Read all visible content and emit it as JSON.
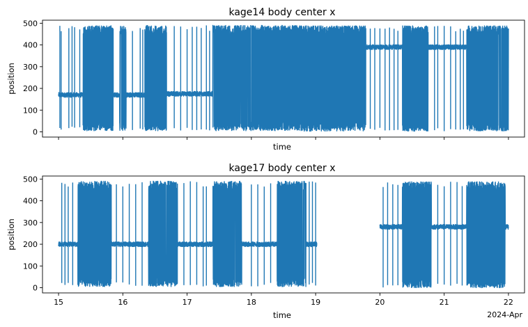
{
  "chart_data": [
    {
      "type": "line",
      "title": "kage14 body center x",
      "xlabel": "time",
      "ylabel": "position",
      "xlim": [
        14.75,
        22.25
      ],
      "ylim": [
        -24,
        514
      ],
      "xticks": [
        15,
        16,
        17,
        18,
        19,
        20,
        21,
        22
      ],
      "yticks": [
        0,
        100,
        200,
        300,
        400,
        500
      ],
      "ytick_labels": [
        "0",
        "100",
        "200",
        "300",
        "400",
        "500"
      ],
      "show_xtick_labels": false,
      "color": "#1f77b4",
      "segments": [
        {
          "x0": 15.0,
          "x1": 16.34,
          "base": 170,
          "lo": 5,
          "hi": 488,
          "dense": [
            [
              15.38,
              15.85
            ],
            [
              15.95,
              16.05
            ]
          ],
          "spikes": [
            15.02,
            15.04,
            15.16,
            15.21,
            15.25,
            15.33,
            16.15,
            16.27,
            16.31
          ]
        },
        {
          "x0": 16.34,
          "x1": 18.82,
          "base": 175,
          "lo": 5,
          "hi": 490,
          "dense": [
            [
              16.34,
              16.68
            ],
            [
              17.4,
              18.82
            ]
          ],
          "spikes": [
            16.8,
            16.9,
            17.0,
            17.08,
            17.15,
            17.22,
            17.3,
            17.35
          ]
        },
        {
          "x0": 18.82,
          "x1": 22.0,
          "base": 390,
          "lo": 3,
          "hi": 488,
          "dense": [
            [
              18.82,
              19.78
            ],
            [
              20.35,
              20.75
            ],
            [
              21.35,
              22.0
            ]
          ],
          "spikes": [
            19.85,
            19.92,
            20.0,
            20.08,
            20.15,
            20.22,
            20.28,
            20.85,
            20.9,
            21.0,
            21.1,
            21.18,
            21.25,
            21.3
          ]
        }
      ]
    },
    {
      "type": "line",
      "title": "kage17 body center x",
      "xlabel": "time",
      "ylabel": "position",
      "xlim": [
        14.75,
        22.25
      ],
      "ylim": [
        -24,
        514
      ],
      "xticks": [
        15,
        16,
        17,
        18,
        19,
        20,
        21,
        22
      ],
      "xtick_labels": [
        "15",
        "16",
        "17",
        "18",
        "19",
        "20",
        "21",
        "22"
      ],
      "x_offset_label": "2024-Apr",
      "yticks": [
        0,
        100,
        200,
        300,
        400,
        500
      ],
      "ytick_labels": [
        "0",
        "100",
        "200",
        "300",
        "400",
        "500"
      ],
      "color": "#1f77b4",
      "segments": [
        {
          "x0": 15.0,
          "x1": 19.02,
          "base": 200,
          "lo": 5,
          "hi": 490,
          "dense": [
            [
              15.3,
              15.82
            ],
            [
              16.4,
              16.85
            ],
            [
              17.4,
              17.85
            ],
            [
              18.4,
              18.85
            ]
          ],
          "spikes": [
            15.05,
            15.1,
            15.15,
            15.22,
            15.9,
            16.0,
            16.1,
            16.2,
            16.3,
            16.95,
            17.05,
            17.15,
            17.25,
            17.3,
            18.0,
            18.1,
            18.2,
            18.3,
            18.9,
            18.95,
            19.0
          ]
        },
        {
          "x0": 20.0,
          "x1": 22.0,
          "base": 280,
          "lo": 0,
          "hi": 488,
          "dense": [
            [
              20.35,
              20.8
            ],
            [
              21.35,
              21.95
            ]
          ],
          "spikes": [
            20.05,
            20.12,
            20.2,
            20.28,
            20.9,
            21.0,
            21.1,
            21.2,
            21.28
          ]
        }
      ]
    }
  ]
}
